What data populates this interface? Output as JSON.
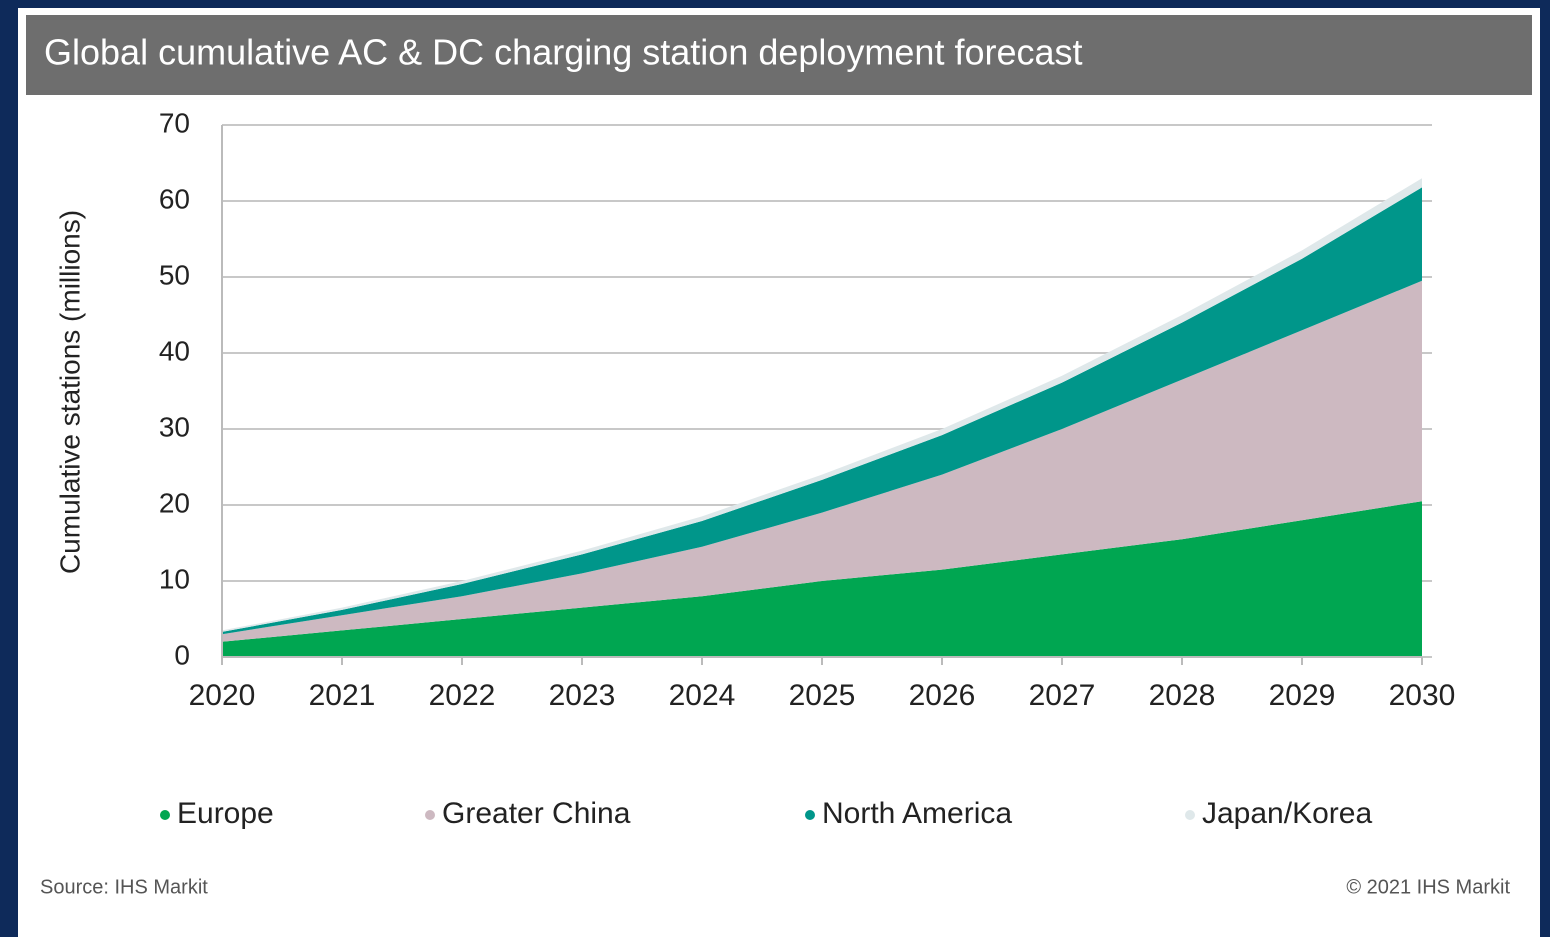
{
  "chart_data": {
    "type": "stacked_area",
    "title": "Global cumulative AC & DC charging station deployment forecast",
    "y_label": "Cumulative stations (millions)",
    "categories": [
      "2020",
      "2021",
      "2022",
      "2023",
      "2024",
      "2025",
      "2026",
      "2027",
      "2028",
      "2029",
      "2030"
    ],
    "series": [
      {
        "name": "Europe",
        "color": "#00a651",
        "values": [
          2.0,
          3.5,
          5.0,
          6.5,
          8.0,
          10.0,
          11.5,
          13.5,
          15.5,
          18.0,
          20.5
        ]
      },
      {
        "name": "Greater China",
        "color": "#cdb9c1",
        "values": [
          1.0,
          2.0,
          3.0,
          4.5,
          6.5,
          9.0,
          12.5,
          16.5,
          21.0,
          25.0,
          29.0
        ]
      },
      {
        "name": "North America",
        "color": "#00968a",
        "values": [
          0.3,
          0.7,
          1.6,
          2.5,
          3.4,
          4.3,
          5.2,
          6.1,
          7.5,
          9.4,
          12.3
        ]
      },
      {
        "name": "Japan/Korea",
        "color": "#dfe8ea",
        "values": [
          0.2,
          0.3,
          0.4,
          0.5,
          0.6,
          0.7,
          0.8,
          0.9,
          1.0,
          1.1,
          1.2
        ]
      }
    ],
    "ylim": [
      0,
      70
    ],
    "yticks": [
      0,
      10,
      20,
      30,
      40,
      50,
      60,
      70
    ],
    "grid": true,
    "legend": "bottom",
    "source": "Source: IHS Markit",
    "copyright": "© 2021 IHS Markit"
  }
}
